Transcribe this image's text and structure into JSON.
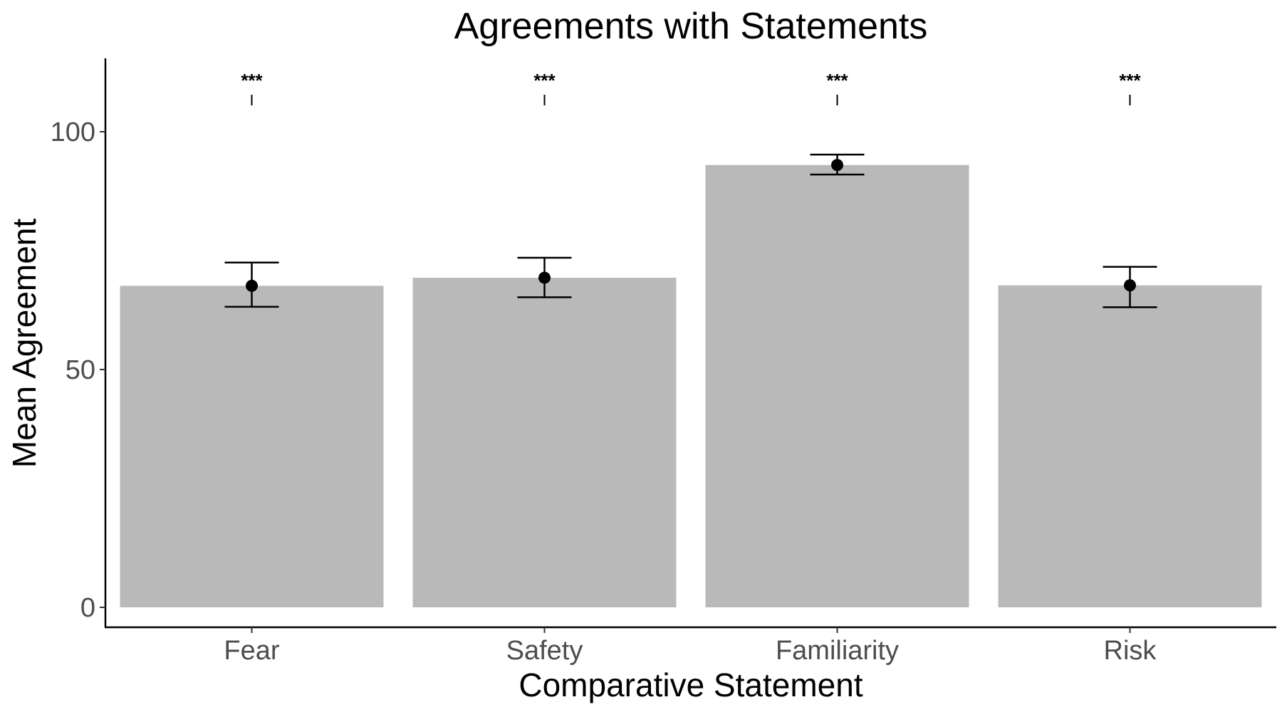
{
  "chart_data": {
    "type": "bar",
    "title": "Agreements with Statements",
    "xlabel": "Comparative Statement",
    "ylabel": "Mean Agreement",
    "categories": [
      "Fear",
      "Safety",
      "Familiarity",
      "Risk"
    ],
    "values": [
      67.6,
      69.3,
      93.0,
      67.7
    ],
    "error_low": [
      63.2,
      65.2,
      91.0,
      63.1
    ],
    "error_high": [
      72.5,
      73.5,
      95.2,
      71.6
    ],
    "significance": [
      "***",
      "***",
      "***",
      "***"
    ],
    "yticks": [
      0,
      50,
      100
    ],
    "ylim": [
      -4.5,
      115
    ],
    "grid": false,
    "legend": "none",
    "bar_color": "#b9b9b9",
    "point_color": "#000000"
  }
}
